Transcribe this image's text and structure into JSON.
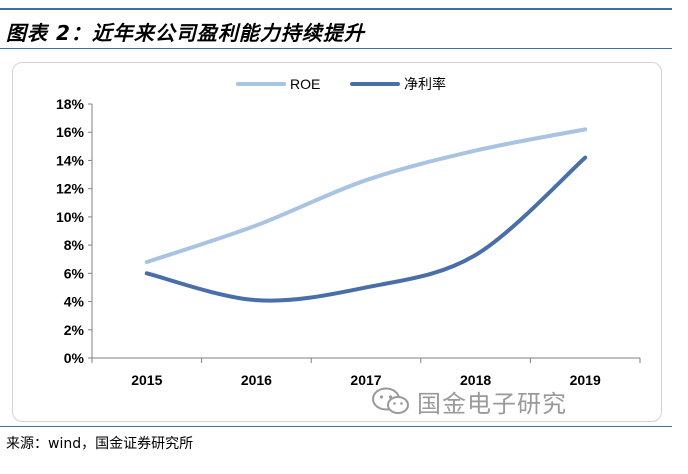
{
  "header": {
    "title": "图表 2：近年来公司盈利能力持续提升"
  },
  "chart_data": {
    "type": "line",
    "title": "",
    "xlabel": "",
    "ylabel": "",
    "categories": [
      "2015",
      "2016",
      "2017",
      "2018",
      "2019"
    ],
    "ylim": [
      0,
      18
    ],
    "y_ticks": [
      "0%",
      "2%",
      "4%",
      "6%",
      "8%",
      "10%",
      "12%",
      "14%",
      "16%",
      "18%"
    ],
    "legend_position": "top",
    "grid": false,
    "series": [
      {
        "name": "ROE",
        "values": [
          6.8,
          9.4,
          12.6,
          14.7,
          16.2
        ],
        "color": "#a9c3e3"
      },
      {
        "name": "净利率",
        "values": [
          6.0,
          4.1,
          5.0,
          7.3,
          14.2
        ],
        "color": "#4a6fa8"
      }
    ]
  },
  "watermark": {
    "text": "国金电子研究",
    "icon": "wechat-icon"
  },
  "footer": {
    "source": "来源：wind，国金证券研究所"
  }
}
